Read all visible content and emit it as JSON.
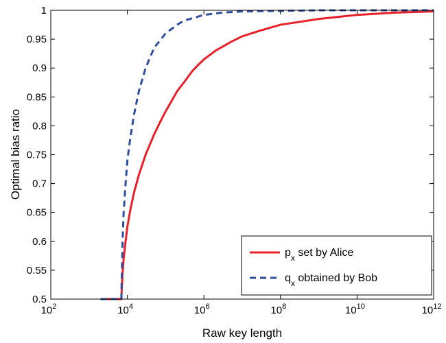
{
  "chart_data": {
    "type": "line",
    "title": "",
    "xlabel": "Raw key length",
    "ylabel": "Optimal bias ratio",
    "x_scale": "log",
    "xlim": [
      100,
      1000000000000
    ],
    "ylim": [
      0.5,
      1
    ],
    "x_ticks": [
      {
        "base": "10",
        "exp": "2"
      },
      {
        "base": "10",
        "exp": "4"
      },
      {
        "base": "10",
        "exp": "6"
      },
      {
        "base": "10",
        "exp": "8"
      },
      {
        "base": "10",
        "exp": "10"
      },
      {
        "base": "10",
        "exp": "12"
      }
    ],
    "y_ticks": [
      "0.5",
      "0.55",
      "0.6",
      "0.65",
      "0.7",
      "0.75",
      "0.8",
      "0.85",
      "0.9",
      "0.95",
      "1"
    ],
    "grid": false,
    "legend_position": "bottom-right",
    "series": [
      {
        "name": "p_x set by Alice",
        "legend_main": "p",
        "legend_sub": "x",
        "legend_rest": " set by Alice",
        "color": "#e8202a",
        "style": "solid",
        "x": [
          2000,
          7000,
          7000,
          7500,
          8000,
          9000,
          10000,
          12000,
          15000,
          20000,
          30000,
          50000,
          70000,
          100000,
          200000,
          300000,
          500000,
          700000,
          1000000,
          2000000,
          5000000,
          10000000,
          30000000,
          100000000,
          1000000000,
          10000000000,
          100000000000,
          1000000000000
        ],
        "y": [
          0.5,
          0.5,
          0.505,
          0.545,
          0.57,
          0.6,
          0.625,
          0.655,
          0.685,
          0.715,
          0.75,
          0.785,
          0.805,
          0.825,
          0.86,
          0.875,
          0.895,
          0.905,
          0.915,
          0.93,
          0.945,
          0.955,
          0.965,
          0.975,
          0.985,
          0.992,
          0.996,
          0.998
        ]
      },
      {
        "name": "q_x obtained by Bob",
        "legend_main": "q",
        "legend_sub": "x",
        "legend_rest": " obtained by Bob",
        "color": "#2e4f9e",
        "style": "dashed",
        "x": [
          2000,
          7000,
          7000,
          7500,
          8000,
          9000,
          10000,
          12000,
          15000,
          20000,
          30000,
          50000,
          100000,
          200000,
          300000,
          1000000,
          3000000,
          10000000,
          100000000,
          1000000000,
          1000000000000
        ],
        "y": [
          0.5,
          0.5,
          0.51,
          0.6,
          0.65,
          0.7,
          0.74,
          0.78,
          0.82,
          0.86,
          0.9,
          0.935,
          0.96,
          0.975,
          0.982,
          0.992,
          0.996,
          0.998,
          0.999,
          1.0,
          1.0
        ]
      }
    ]
  }
}
